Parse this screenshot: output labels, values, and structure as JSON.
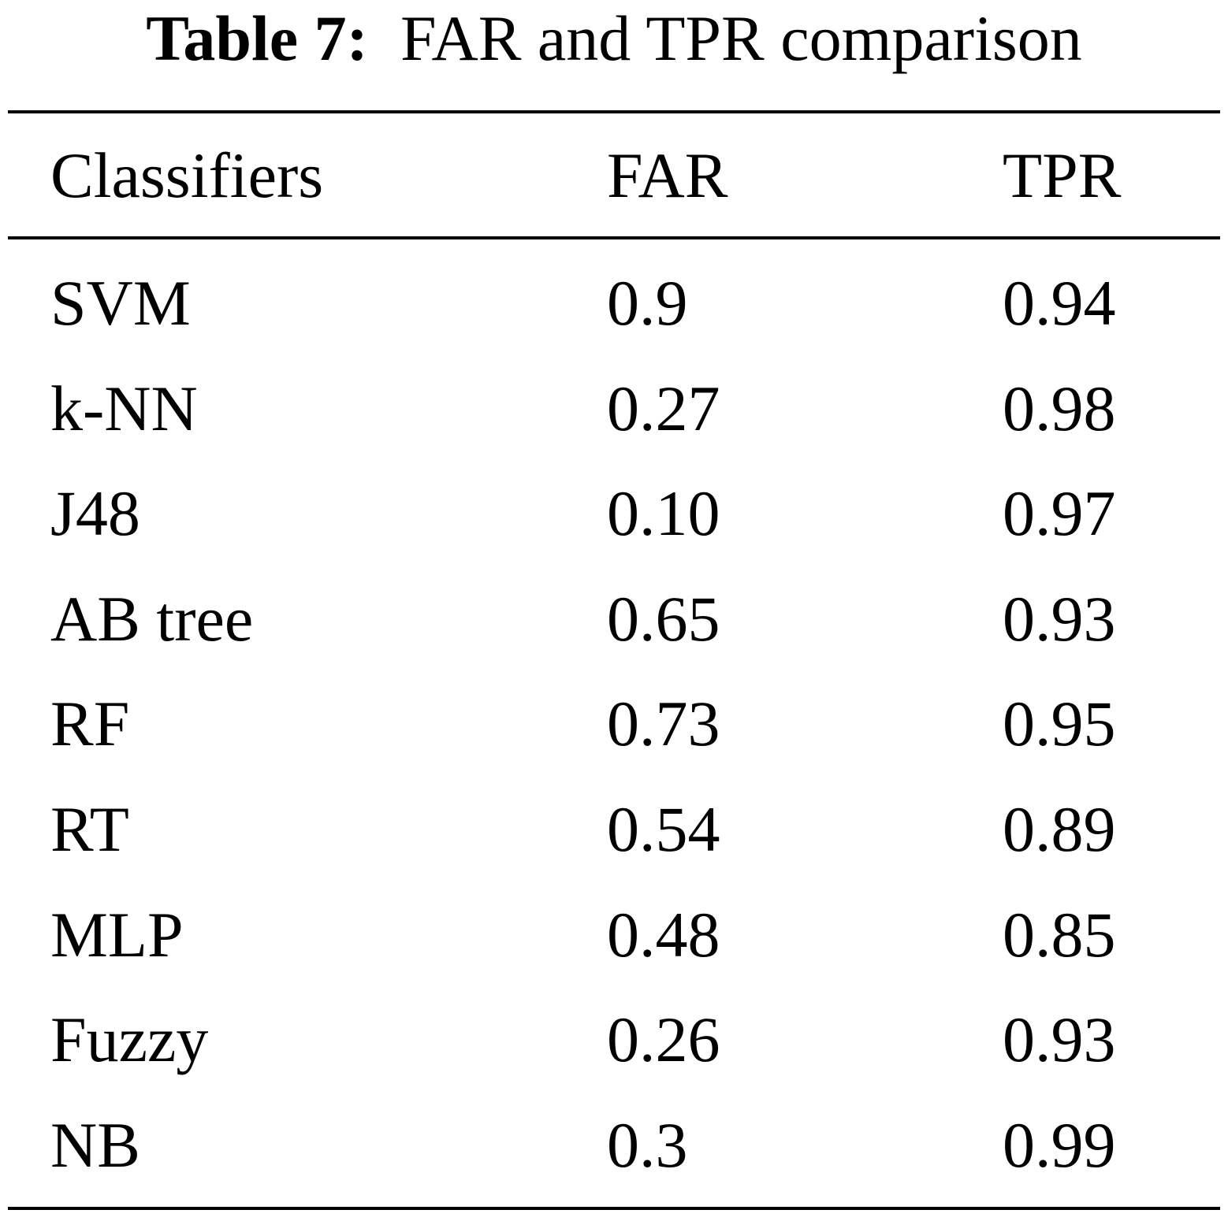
{
  "caption": {
    "label": "Table 7:",
    "text": "FAR and TPR comparison"
  },
  "table": {
    "columns": [
      "Classifiers",
      "FAR",
      "TPR"
    ],
    "rows": [
      [
        "SVM",
        "0.9",
        "0.94"
      ],
      [
        "k-NN",
        "0.27",
        "0.98"
      ],
      [
        "J48",
        "0.10",
        "0.97"
      ],
      [
        "AB tree",
        "0.65",
        "0.93"
      ],
      [
        "RF",
        "0.73",
        "0.95"
      ],
      [
        "RT",
        "0.54",
        "0.89"
      ],
      [
        "MLP",
        "0.48",
        "0.85"
      ],
      [
        "Fuzzy",
        "0.26",
        "0.93"
      ],
      [
        "NB",
        "0.3",
        "0.99"
      ]
    ]
  }
}
